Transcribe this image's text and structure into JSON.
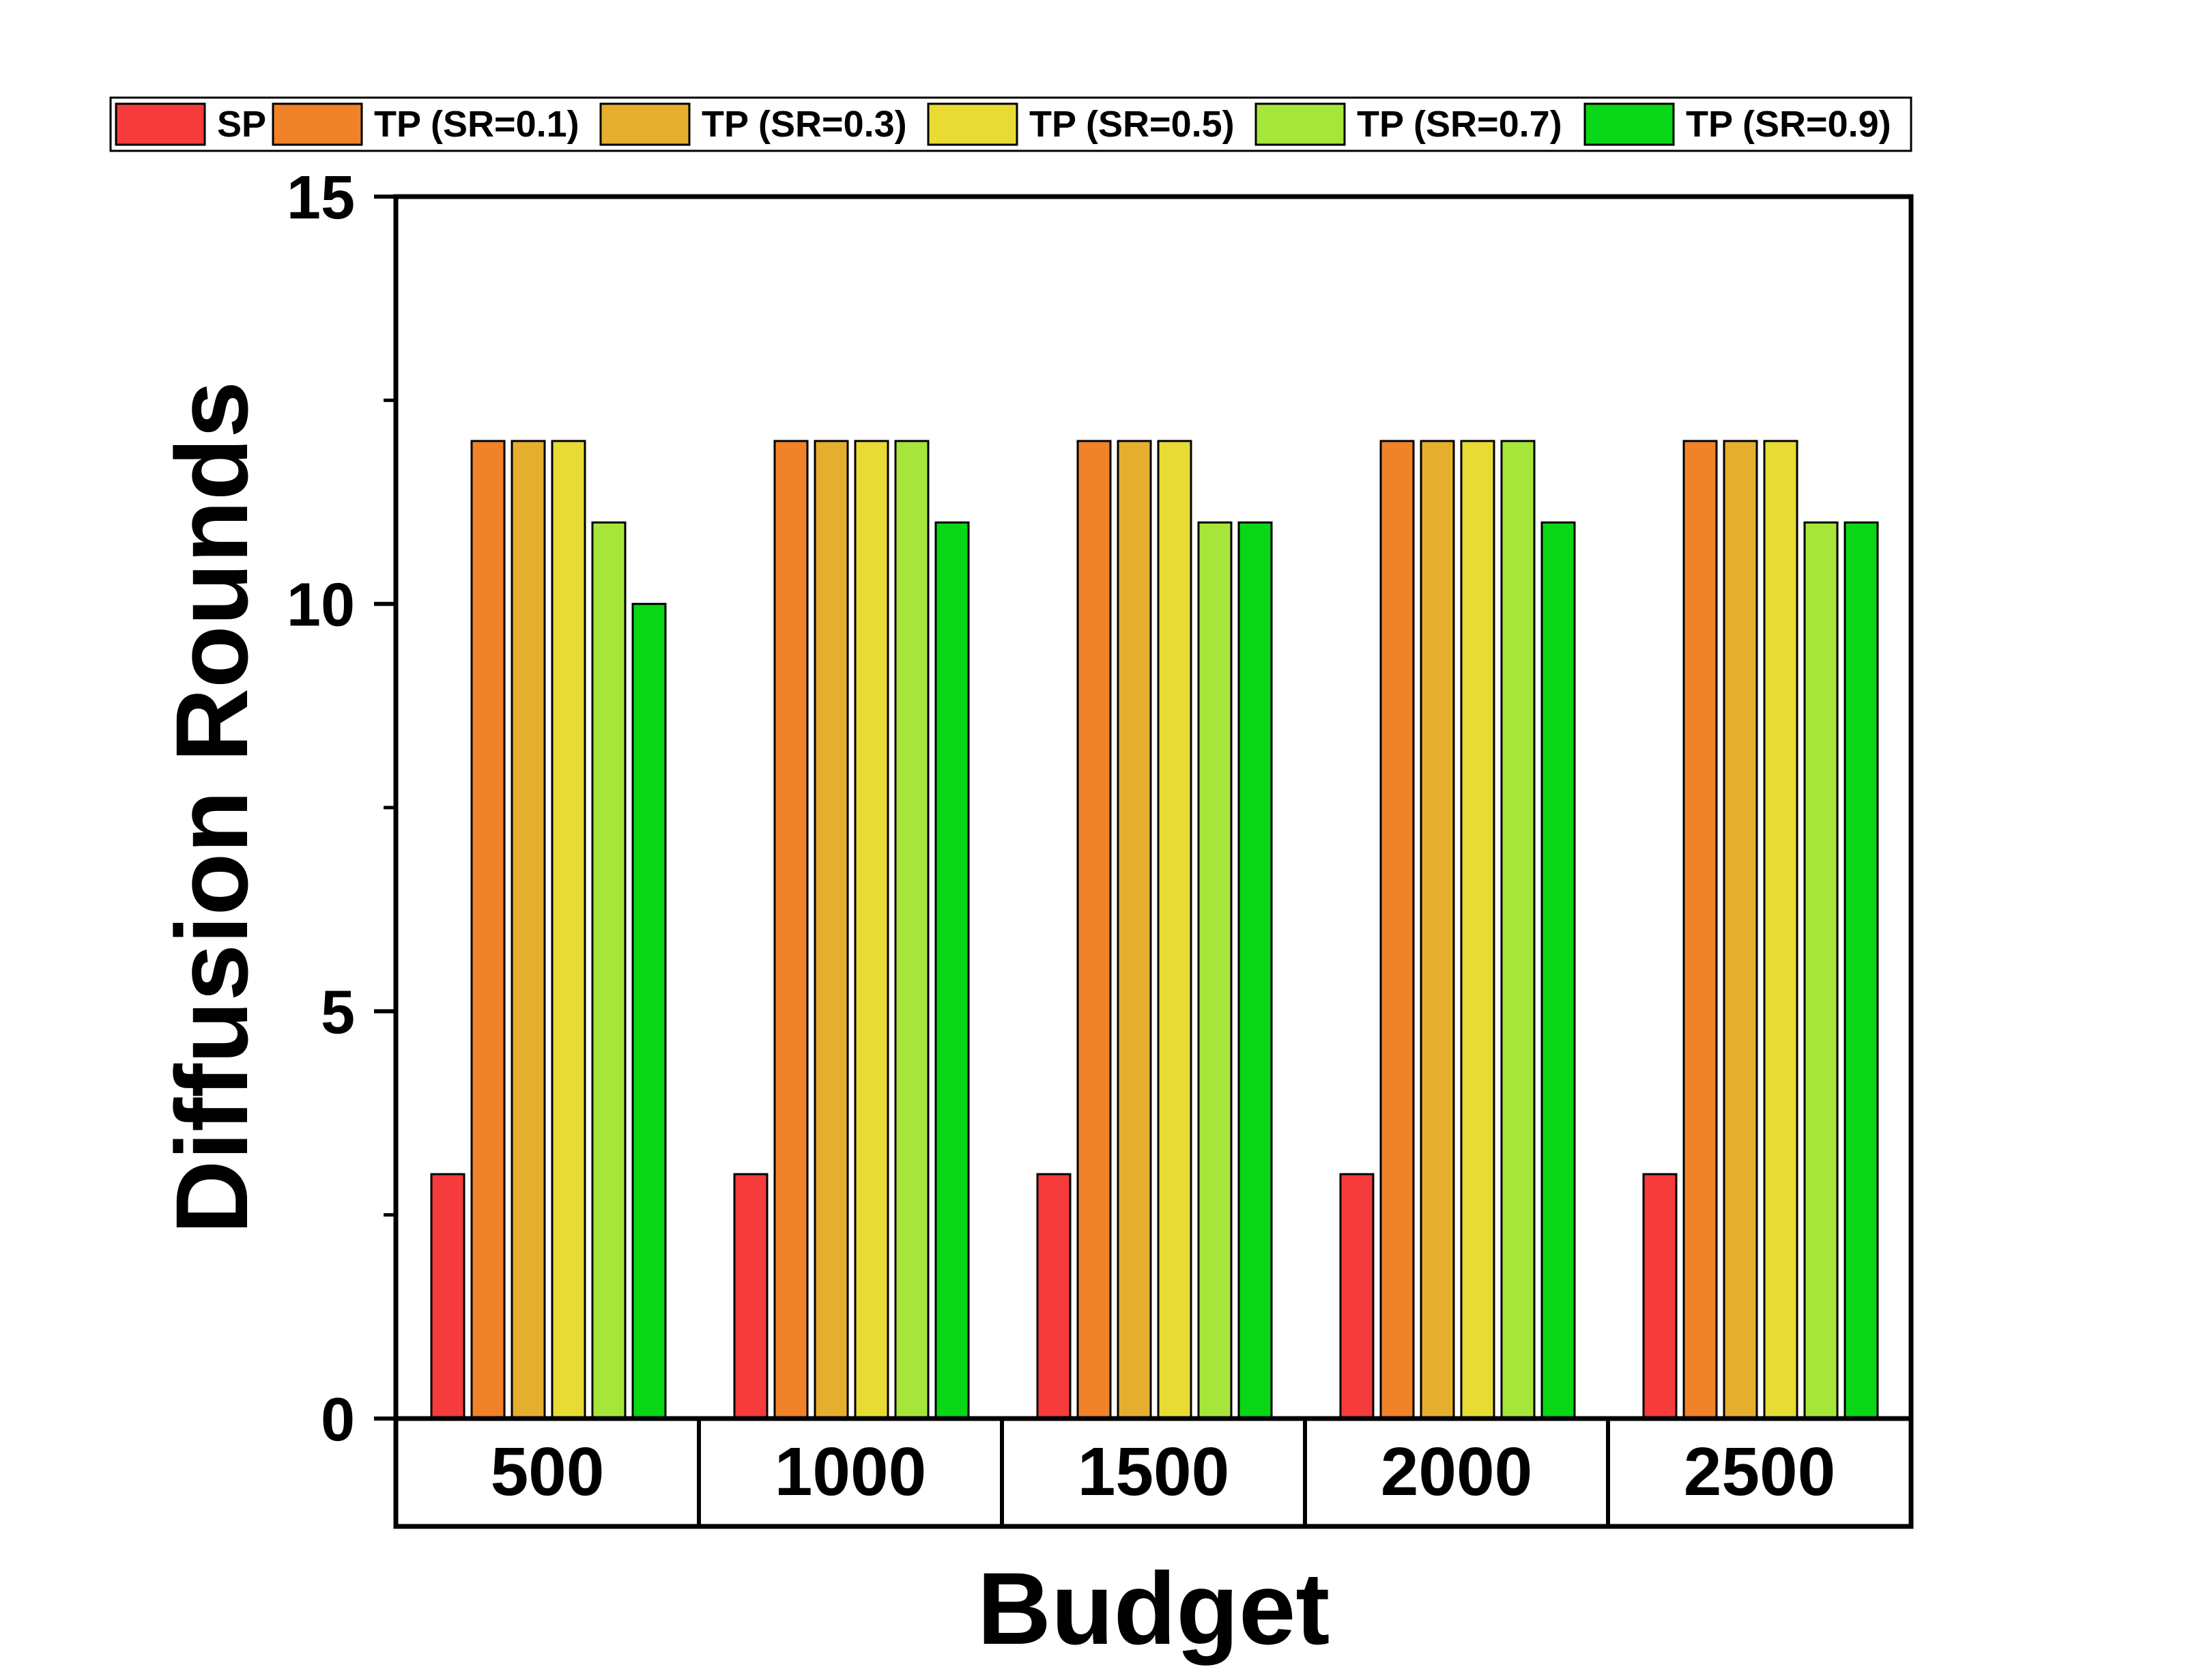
{
  "chart_data": {
    "type": "bar",
    "title": "",
    "xlabel": "Budget",
    "ylabel": "Diffusion Rounds",
    "ylim": [
      0,
      15
    ],
    "yticks": [
      "0",
      "5",
      "10",
      "15"
    ],
    "ytick_values": [
      0,
      5,
      10,
      15
    ],
    "grid": false,
    "legend_position": "top",
    "categories": [
      "500",
      "1000",
      "1500",
      "2000",
      "2500"
    ],
    "series": [
      {
        "name": "SP",
        "color": "#f53b3b",
        "values": [
          3,
          3,
          3,
          3,
          3
        ]
      },
      {
        "name": "TP (SR=0.1)",
        "color": "#f0822a",
        "values": [
          12,
          12,
          12,
          12,
          12
        ]
      },
      {
        "name": "TP (SR=0.3)",
        "color": "#e6ae2f",
        "values": [
          12,
          12,
          12,
          12,
          12
        ]
      },
      {
        "name": "TP (SR=0.5)",
        "color": "#e8dc34",
        "values": [
          12,
          12,
          12,
          12,
          12
        ]
      },
      {
        "name": "TP (SR=0.7)",
        "color": "#a6e63a",
        "values": [
          11,
          12,
          11,
          12,
          11
        ]
      },
      {
        "name": "TP (SR=0.9)",
        "color": "#08d616",
        "values": [
          10,
          11,
          11,
          11,
          11
        ]
      }
    ]
  }
}
